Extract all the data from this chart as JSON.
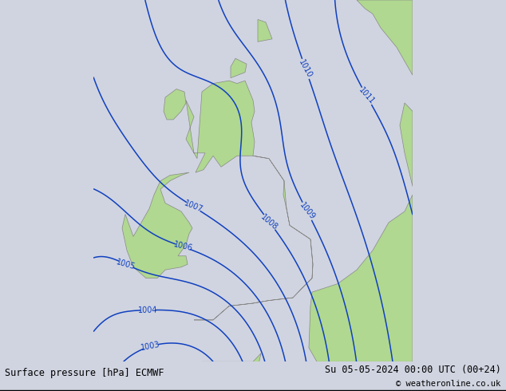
{
  "title_left": "Surface pressure [hPa] ECMWF",
  "title_right": "Su 05-05-2024 00:00 UTC (00+24)",
  "copyright": "© weatheronline.co.uk",
  "bg_color": "#d0d4e0",
  "land_color": "#b0d890",
  "coast_color": "#888888",
  "isobar_color": "#1040c0",
  "isobar_lw": 1.1,
  "label_fontsize": 7,
  "figsize": [
    6.34,
    4.9
  ],
  "dpi": 100,
  "lon_min": -12.0,
  "lon_max": 8.0,
  "lat_min": 48.5,
  "lat_max": 61.5
}
